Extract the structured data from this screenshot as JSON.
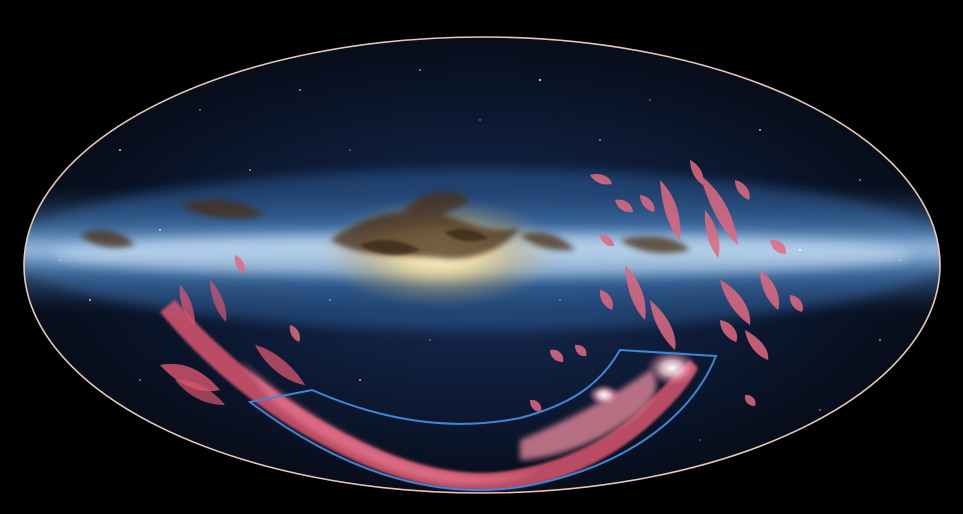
{
  "image": {
    "subject": "all-sky-map",
    "projection": "mollweide-ellipse",
    "colors": {
      "background": "#000000",
      "sky_dark": "#05080f",
      "sky_mid": "#0f1e3c",
      "galactic_band": "#6fa6d8",
      "galactic_core": "#f2e6b8",
      "dust": "#5b3a1c",
      "gas_stream": "#e2627a",
      "gas_bright": "#ffd0d8",
      "outline": "#e8c9b8",
      "region_outline": "#3f86d6"
    },
    "features": [
      "milky-way-band",
      "galactic-center-bulge",
      "dust-lanes",
      "magellanic-stream",
      "magellanic-clouds",
      "survey-region-outline",
      "background-stars"
    ]
  }
}
